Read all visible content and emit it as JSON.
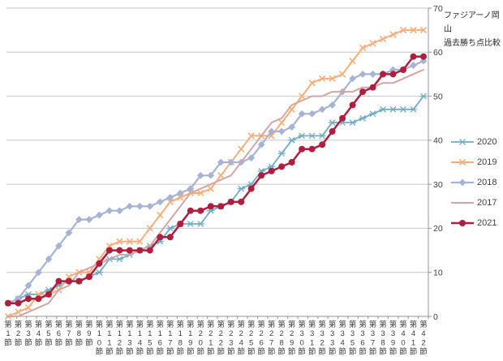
{
  "title": {
    "line1": "ファジアーノ岡山",
    "line2": "過去勝ち点比較"
  },
  "y_axis": {
    "ticks": [
      0,
      10,
      20,
      30,
      40,
      50,
      60,
      70
    ],
    "min": 0,
    "max": 70
  },
  "x_axis": {
    "labels": [
      "第1節",
      "第2節",
      "第3節",
      "第4節",
      "第5節",
      "第6節",
      "第7節",
      "第8節",
      "第9節",
      "第10節",
      "第11節",
      "第12節",
      "第13節",
      "第14節",
      "第15節",
      "第16節",
      "第17節",
      "第18節",
      "第19節",
      "第20節",
      "第21節",
      "第22節",
      "第23節",
      "第24節",
      "第25節",
      "第26節",
      "第27節",
      "第28節",
      "第29節",
      "第30節",
      "第31節",
      "第32節",
      "第33節",
      "第34節",
      "第35節",
      "第36節",
      "第37節",
      "第38節",
      "第39節",
      "第40節",
      "第41節",
      "第42節"
    ]
  },
  "legend": {
    "entries": [
      "2020",
      "2019",
      "2018",
      "2017",
      "2021"
    ],
    "position": "right"
  },
  "colors": {
    "grid": "#c6c6c6",
    "axis": "#969696",
    "tick_text": "#404040",
    "title_text": "#262626"
  },
  "chart_data": {
    "type": "line",
    "title": "ファジアーノ岡山 過去勝ち点比較",
    "xlabel": "",
    "ylabel": "",
    "ylim": [
      0,
      70
    ],
    "grid": true,
    "x": [
      1,
      2,
      3,
      4,
      5,
      6,
      7,
      8,
      9,
      10,
      11,
      12,
      13,
      14,
      15,
      16,
      17,
      18,
      19,
      20,
      21,
      22,
      23,
      24,
      25,
      26,
      27,
      28,
      29,
      30,
      31,
      32,
      33,
      34,
      35,
      36,
      37,
      38,
      39,
      40,
      41,
      42
    ],
    "series": [
      {
        "name": "2020",
        "color": "#6fadc7",
        "marker": "star",
        "line_width": 1.8,
        "values": [
          3,
          4,
          5,
          5,
          6,
          7,
          8,
          8,
          9,
          10,
          13,
          13,
          14,
          15,
          16,
          17,
          20,
          21,
          21,
          21,
          24,
          25,
          26,
          29,
          30,
          33,
          34,
          37,
          40,
          41,
          41,
          41,
          44,
          44,
          44,
          45,
          46,
          47,
          47,
          47,
          47,
          50
        ]
      },
      {
        "name": "2019",
        "color": "#f9ae79",
        "marker": "x",
        "line_width": 2,
        "values": [
          0,
          1,
          2,
          5,
          5,
          6,
          9,
          10,
          10,
          13,
          16,
          17,
          17,
          17,
          20,
          23,
          26,
          27,
          28,
          28,
          29,
          32,
          35,
          38,
          41,
          41,
          41,
          44,
          47,
          50,
          53,
          54,
          54,
          55,
          58,
          61,
          62,
          63,
          64,
          65,
          65,
          65
        ]
      },
      {
        "name": "2018",
        "color": "#a6b3d4",
        "marker": "diamond",
        "line_width": 2.2,
        "values": [
          3,
          4,
          7,
          10,
          13,
          16,
          19,
          22,
          22,
          23,
          24,
          24,
          25,
          25,
          25,
          26,
          27,
          28,
          29,
          32,
          32,
          35,
          35,
          35,
          36,
          39,
          42,
          42,
          43,
          46,
          46,
          47,
          48,
          51,
          54,
          55,
          55,
          55,
          56,
          56,
          57,
          58
        ]
      },
      {
        "name": "2017",
        "color": "#d5a5a3",
        "marker": "none",
        "line_width": 2,
        "values": [
          0,
          0,
          1,
          2,
          3,
          6,
          7,
          10,
          11,
          12,
          13,
          14,
          14,
          15,
          16,
          19,
          22,
          25,
          28,
          29,
          30,
          31,
          32,
          35,
          38,
          41,
          44,
          45,
          48,
          49,
          50,
          50,
          51,
          51,
          51,
          52,
          52,
          53,
          53,
          54,
          55,
          56
        ]
      },
      {
        "name": "2021",
        "color": "#b01e3e",
        "marker": "circle",
        "line_width": 2.5,
        "values": [
          3,
          3,
          4,
          4,
          5,
          8,
          8,
          8,
          9,
          12,
          15,
          15,
          15,
          15,
          15,
          18,
          18,
          21,
          24,
          24,
          25,
          25,
          26,
          26,
          29,
          32,
          33,
          34,
          35,
          38,
          38,
          39,
          42,
          45,
          48,
          51,
          52,
          55,
          55,
          56,
          59,
          59
        ]
      }
    ]
  }
}
